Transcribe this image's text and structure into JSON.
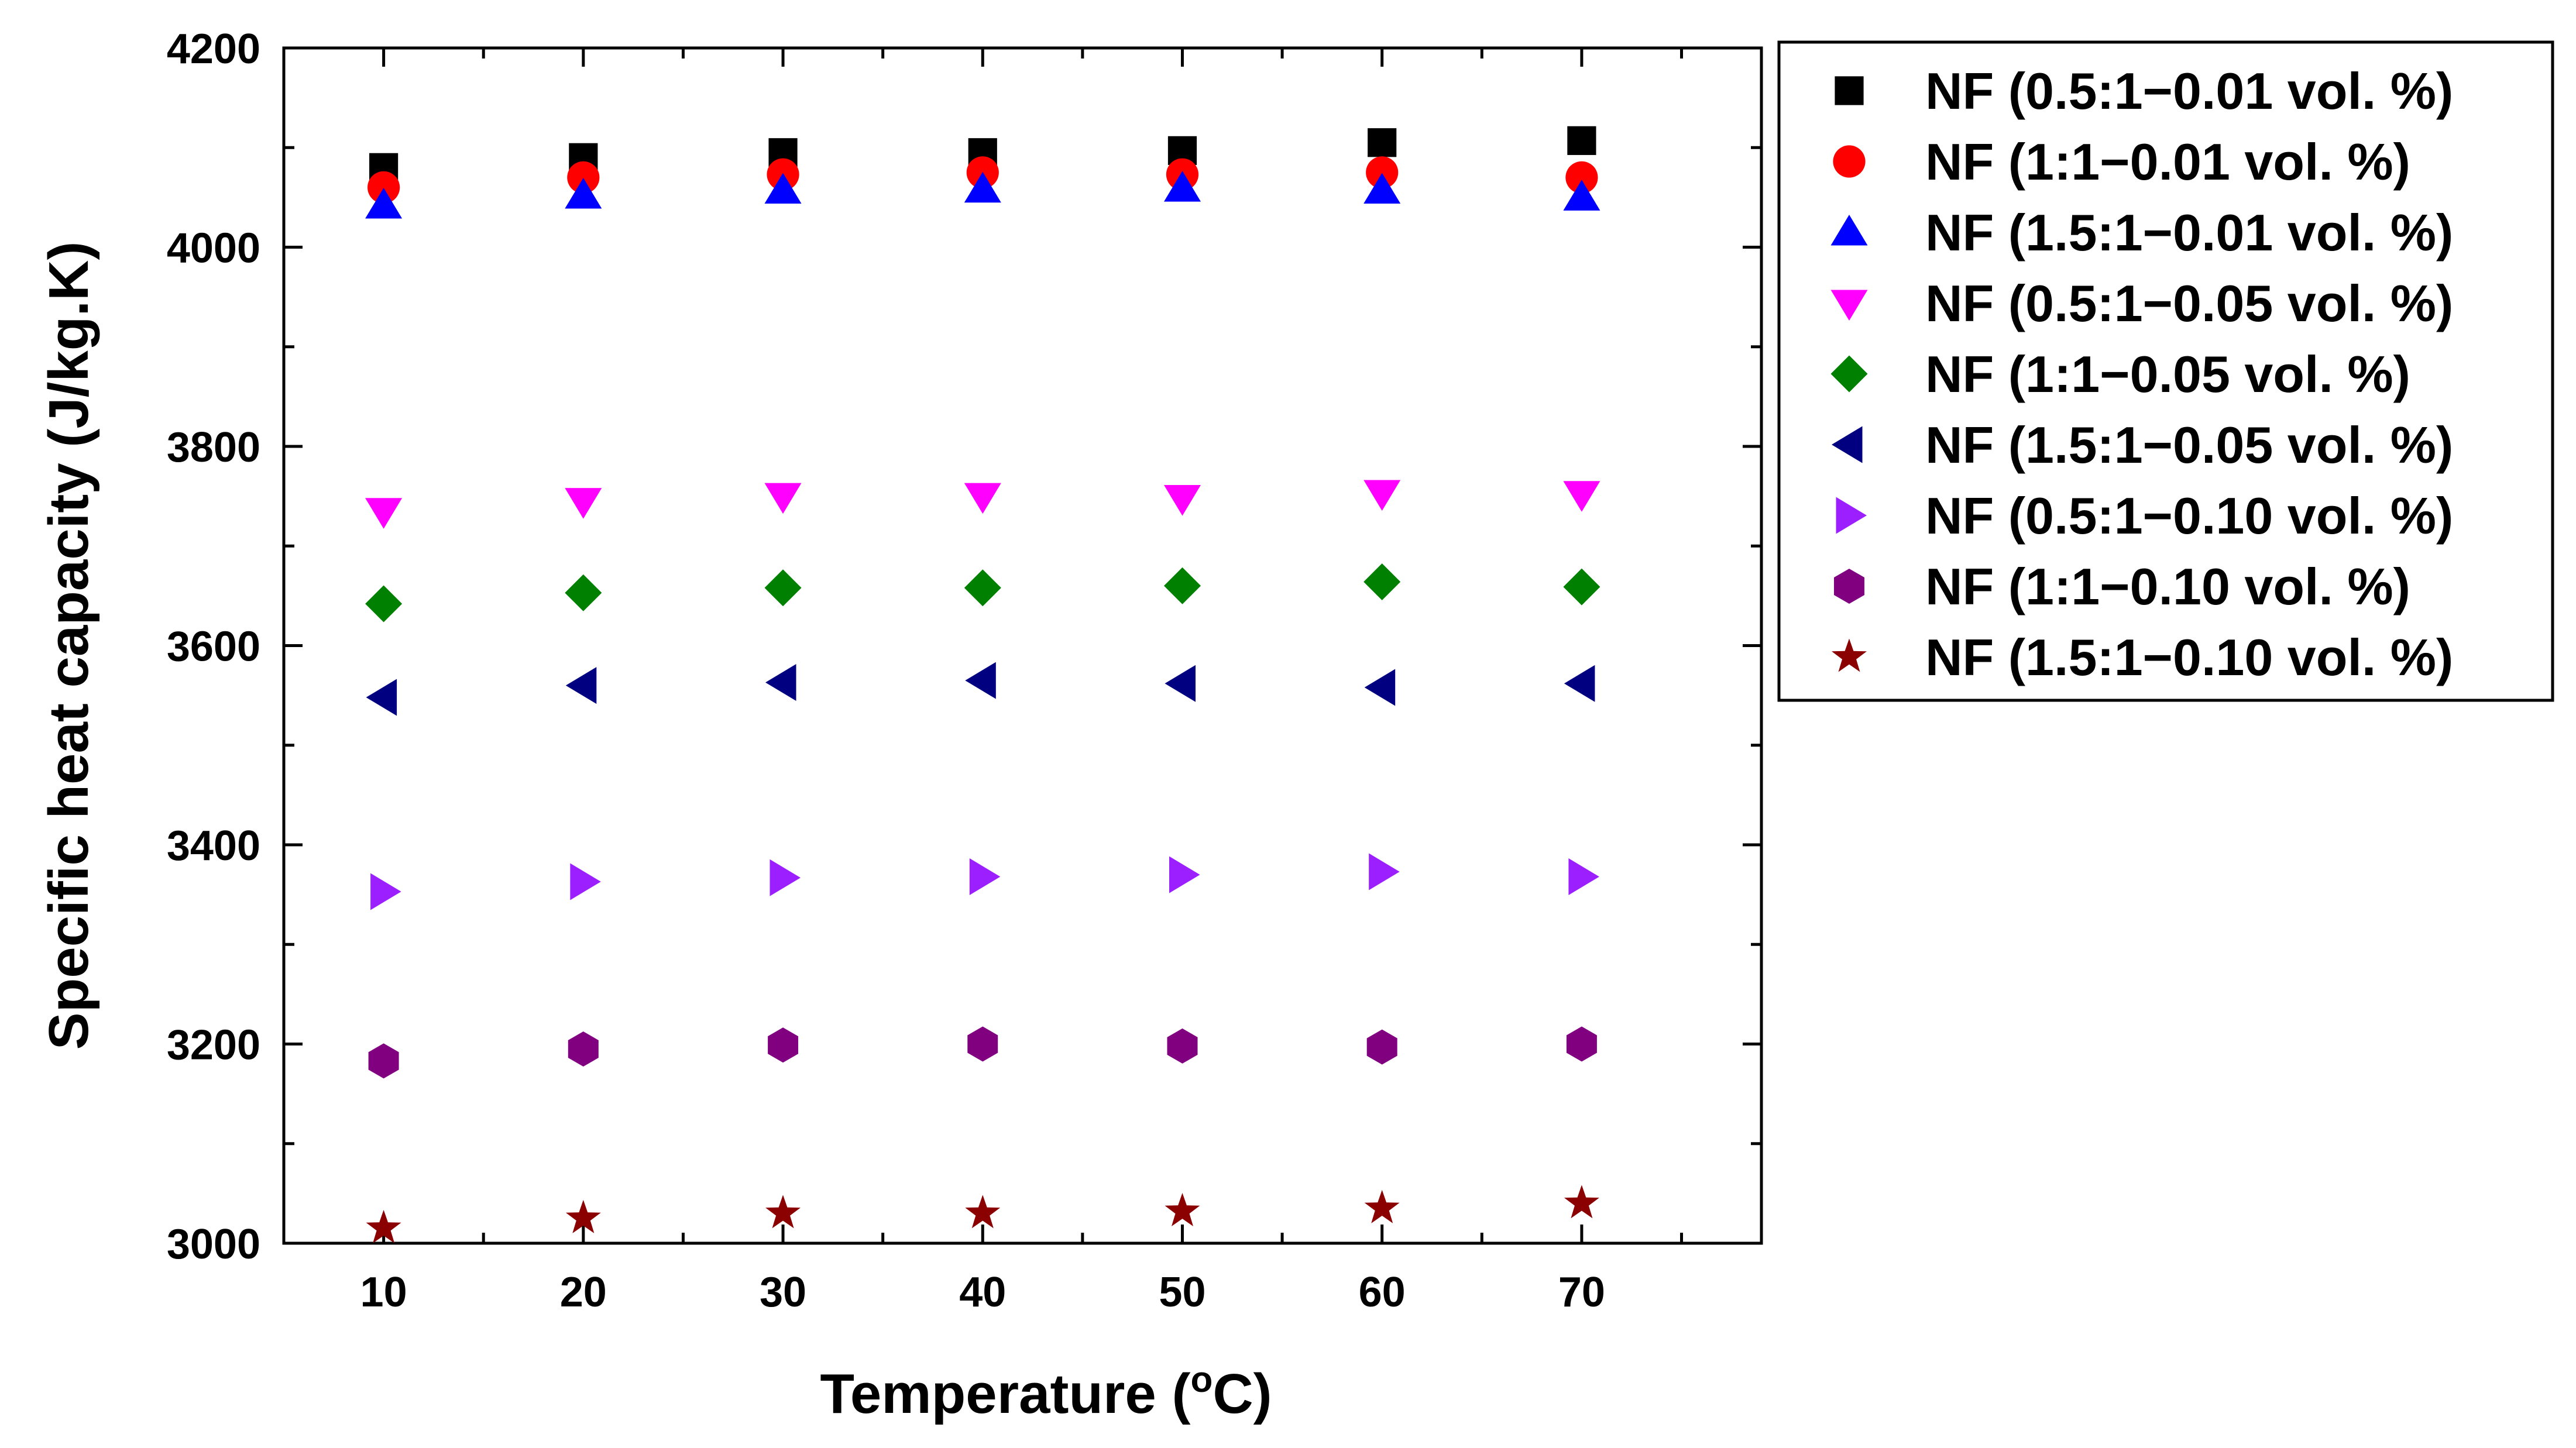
{
  "chart_data": {
    "type": "scatter",
    "title": "",
    "xlabel": "Temperature (oC)",
    "xlabel_parts": {
      "prefix": "Temperature (",
      "superscript": "o",
      "suffix": "C)"
    },
    "ylabel": "Specific heat capacity (J/kg.K)",
    "x": [
      10,
      20,
      30,
      40,
      50,
      60,
      70
    ],
    "xlim": [
      5,
      79
    ],
    "ylim": [
      3000,
      4200
    ],
    "xticks": [
      10,
      20,
      30,
      40,
      50,
      60,
      70
    ],
    "yticks": [
      3000,
      3200,
      3400,
      3600,
      3800,
      4000,
      4200
    ],
    "grid": false,
    "legend_position": "outside-right-top",
    "series": [
      {
        "name": "NF (0.5:1−0.01 vol. %)",
        "marker": "square",
        "color": "#000000",
        "values": [
          4080,
          4090,
          4095,
          4095,
          4097,
          4105,
          4107
        ]
      },
      {
        "name": "NF (1:1−0.01 vol. %)",
        "marker": "circle",
        "color": "#ff0000",
        "values": [
          4060,
          4070,
          4073,
          4075,
          4073,
          4075,
          4070
        ]
      },
      {
        "name": "NF (1.5:1−0.01 vol. %)",
        "marker": "triangle-up",
        "color": "#0000ff",
        "values": [
          4042,
          4052,
          4057,
          4058,
          4059,
          4057,
          4050
        ]
      },
      {
        "name": "NF (0.5:1−0.05 vol. %)",
        "marker": "triangle-down",
        "color": "#ff00ff",
        "values": [
          3735,
          3745,
          3750,
          3750,
          3748,
          3753,
          3752
        ]
      },
      {
        "name": "NF (1:1−0.05 vol. %)",
        "marker": "diamond",
        "color": "#008000",
        "values": [
          3642,
          3653,
          3658,
          3658,
          3660,
          3664,
          3659
        ]
      },
      {
        "name": "NF (1.5:1−0.05 vol. %)",
        "marker": "triangle-left",
        "color": "#000080",
        "values": [
          3548,
          3560,
          3563,
          3565,
          3562,
          3558,
          3562
        ]
      },
      {
        "name": "NF (0.5:1−0.10 vol. %)",
        "marker": "triangle-right",
        "color": "#9b1fff",
        "values": [
          3353,
          3363,
          3367,
          3368,
          3370,
          3373,
          3368
        ]
      },
      {
        "name": "NF (1:1−0.10 vol. %)",
        "marker": "hexagon",
        "color": "#800080",
        "values": [
          3183,
          3195,
          3199,
          3200,
          3198,
          3197,
          3200
        ]
      },
      {
        "name": "NF (1.5:1−0.10 vol. %)",
        "marker": "star",
        "color": "#8b0000",
        "values": [
          3015,
          3025,
          3030,
          3030,
          3032,
          3035,
          3040
        ]
      }
    ]
  }
}
